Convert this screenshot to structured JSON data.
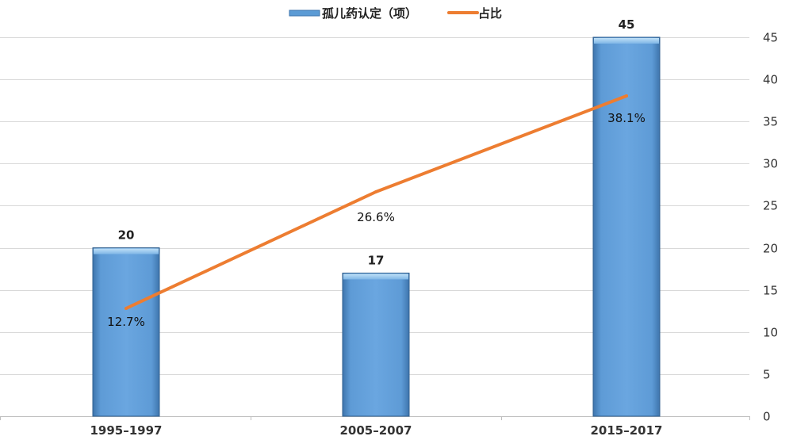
{
  "chart_data": {
    "type": "bar",
    "categories": [
      "1995–1997",
      "2005–2007",
      "2015–2017"
    ],
    "series": [
      {
        "name": "孤儿药认定（项）",
        "kind": "bar",
        "axis": "right",
        "values": [
          20,
          17,
          45
        ],
        "value_labels": [
          "20",
          "17",
          "45"
        ],
        "color": "#5b9bd5"
      },
      {
        "name": "占比",
        "kind": "line",
        "values": [
          12.7,
          26.6,
          38.1
        ],
        "value_labels": [
          "12.7%",
          "26.6%",
          "38.1%"
        ],
        "color": "#ed7d31"
      }
    ],
    "y_axis": {
      "position": "right",
      "ylim": [
        0,
        45
      ],
      "ticks": [
        "0",
        "5",
        "10",
        "15",
        "20",
        "25",
        "30",
        "35",
        "40",
        "45"
      ]
    },
    "grid": true,
    "legend_position": "top"
  }
}
